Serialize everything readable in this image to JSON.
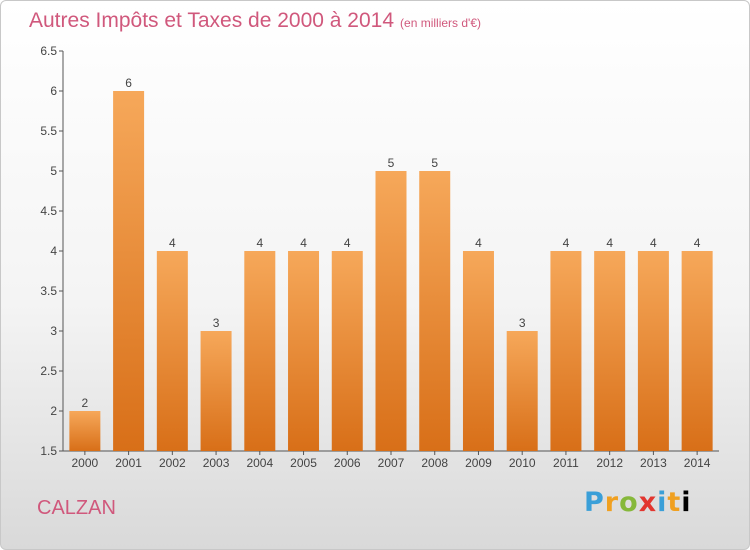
{
  "header": {
    "title": "Autres Impôts et Taxes de 2000 à 2014",
    "unit": "(en milliers d'€)"
  },
  "footer": {
    "commune": "CALZAN",
    "logo_text": "Proxiti"
  },
  "colors": {
    "accent": "#d0587c",
    "bar_top": "#f6a85a",
    "bar_bottom": "#d86f18",
    "axis": "#555555"
  },
  "chart_data": {
    "type": "bar",
    "categories": [
      "2000",
      "2001",
      "2002",
      "2003",
      "2004",
      "2005",
      "2006",
      "2007",
      "2008",
      "2009",
      "2010",
      "2011",
      "2012",
      "2013",
      "2014"
    ],
    "values": [
      2,
      6,
      4,
      3,
      4,
      4,
      4,
      5,
      5,
      4,
      3,
      4,
      4,
      4,
      4
    ],
    "value_labels": [
      "2",
      "6",
      "4",
      "3",
      "4",
      "4",
      "4",
      "5",
      "5",
      "4",
      "3",
      "4",
      "4",
      "4",
      "4"
    ],
    "ylim": [
      1.5,
      6.5
    ],
    "yticks": [
      "1.5",
      "2",
      "2.5",
      "3",
      "3.5",
      "4",
      "4.5",
      "5",
      "5.5",
      "6",
      "6.5"
    ],
    "title": "Autres Impôts et Taxes de 2000 à 2014",
    "xlabel": "",
    "ylabel": "",
    "grid": false
  }
}
